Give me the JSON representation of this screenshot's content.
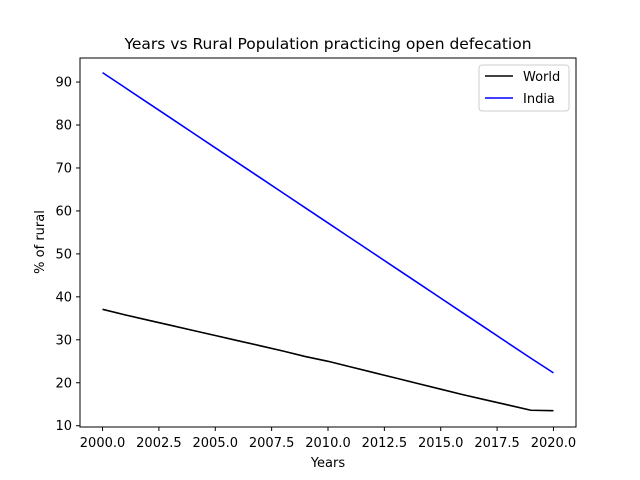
{
  "chart_data": {
    "type": "line",
    "title": "Years vs Rural Population practicing open defecation",
    "xlabel": "Years",
    "ylabel": "% of rural",
    "xlim": [
      1999.0,
      2021.0
    ],
    "ylim": [
      9.7,
      95.6
    ],
    "xticks": [
      2000.0,
      2002.5,
      2005.0,
      2007.5,
      2010.0,
      2012.5,
      2015.0,
      2017.5,
      2020.0
    ],
    "xtick_labels": [
      "2000.0",
      "2002.5",
      "2005.0",
      "2007.5",
      "2010.0",
      "2012.5",
      "2015.0",
      "2017.5",
      "2020.0"
    ],
    "yticks": [
      10,
      20,
      30,
      40,
      50,
      60,
      70,
      80,
      90
    ],
    "ytick_labels": [
      "10",
      "20",
      "30",
      "40",
      "50",
      "60",
      "70",
      "80",
      "90"
    ],
    "grid": false,
    "legend_position": "top-right",
    "x": [
      2000,
      2001,
      2002,
      2003,
      2004,
      2005,
      2006,
      2007,
      2008,
      2009,
      2010,
      2011,
      2012,
      2013,
      2014,
      2015,
      2016,
      2017,
      2018,
      2019,
      2020
    ],
    "series": [
      {
        "name": "World",
        "color": "#000000",
        "values": [
          37.1,
          35.8,
          34.6,
          33.4,
          32.2,
          31.0,
          29.8,
          28.6,
          27.4,
          26.1,
          25.0,
          23.7,
          22.4,
          21.1,
          19.8,
          18.5,
          17.2,
          16.0,
          14.8,
          13.6,
          13.5
        ]
      },
      {
        "name": "India",
        "color": "#0000ff",
        "values": [
          92.2,
          88.7,
          85.2,
          81.7,
          78.2,
          74.7,
          71.2,
          67.7,
          64.2,
          60.7,
          57.2,
          53.7,
          50.2,
          46.7,
          43.2,
          39.7,
          36.2,
          32.7,
          29.2,
          25.7,
          22.3
        ]
      }
    ]
  }
}
